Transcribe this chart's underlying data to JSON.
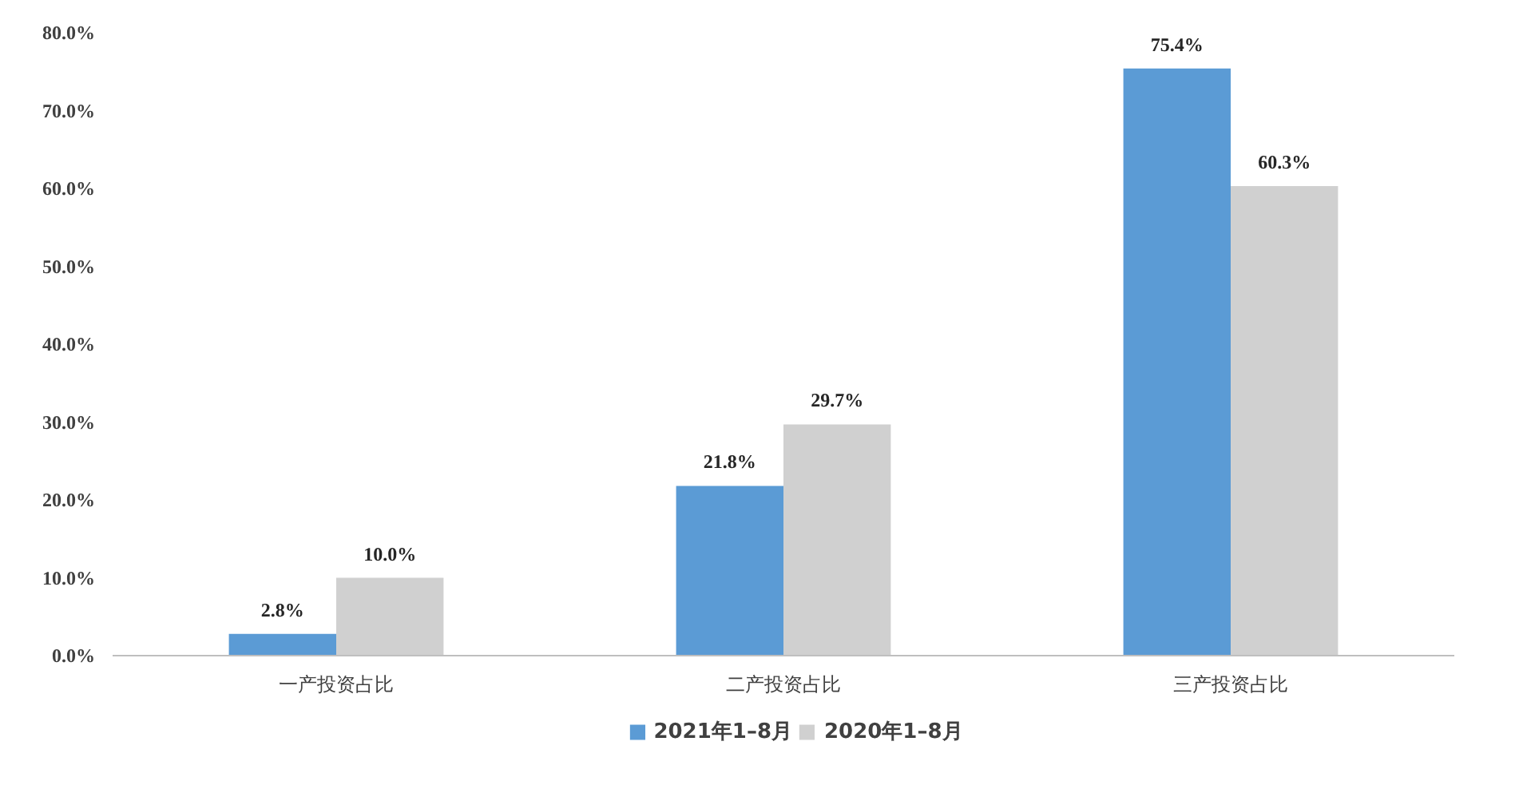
{
  "chart_data": {
    "type": "bar",
    "categories": [
      "一产投资占比",
      "二产投资占比",
      "三产投资占比"
    ],
    "series": [
      {
        "name": "2021年1–8月",
        "color": "#5b9bd5",
        "values": [
          2.8,
          21.8,
          75.4
        ],
        "value_labels": [
          "2.8%",
          "21.8%",
          "75.4%"
        ]
      },
      {
        "name": "2020年1–8月",
        "color": "#d0d0d0",
        "values": [
          10.0,
          29.7,
          60.3
        ],
        "value_labels": [
          "10.0%",
          "29.7%",
          "60.3%"
        ]
      }
    ],
    "ylim": [
      0,
      80
    ],
    "yticks": [
      {
        "value": 0,
        "label": "0.0%"
      },
      {
        "value": 10,
        "label": "10.0%"
      },
      {
        "value": 20,
        "label": "20.0%"
      },
      {
        "value": 30,
        "label": "30.0%"
      },
      {
        "value": 40,
        "label": "40.0%"
      },
      {
        "value": 50,
        "label": "50.0%"
      },
      {
        "value": 60,
        "label": "60.0%"
      },
      {
        "value": 70,
        "label": "70.0%"
      },
      {
        "value": 80,
        "label": "80.0%"
      }
    ],
    "grid": false,
    "legend": "bottom"
  }
}
